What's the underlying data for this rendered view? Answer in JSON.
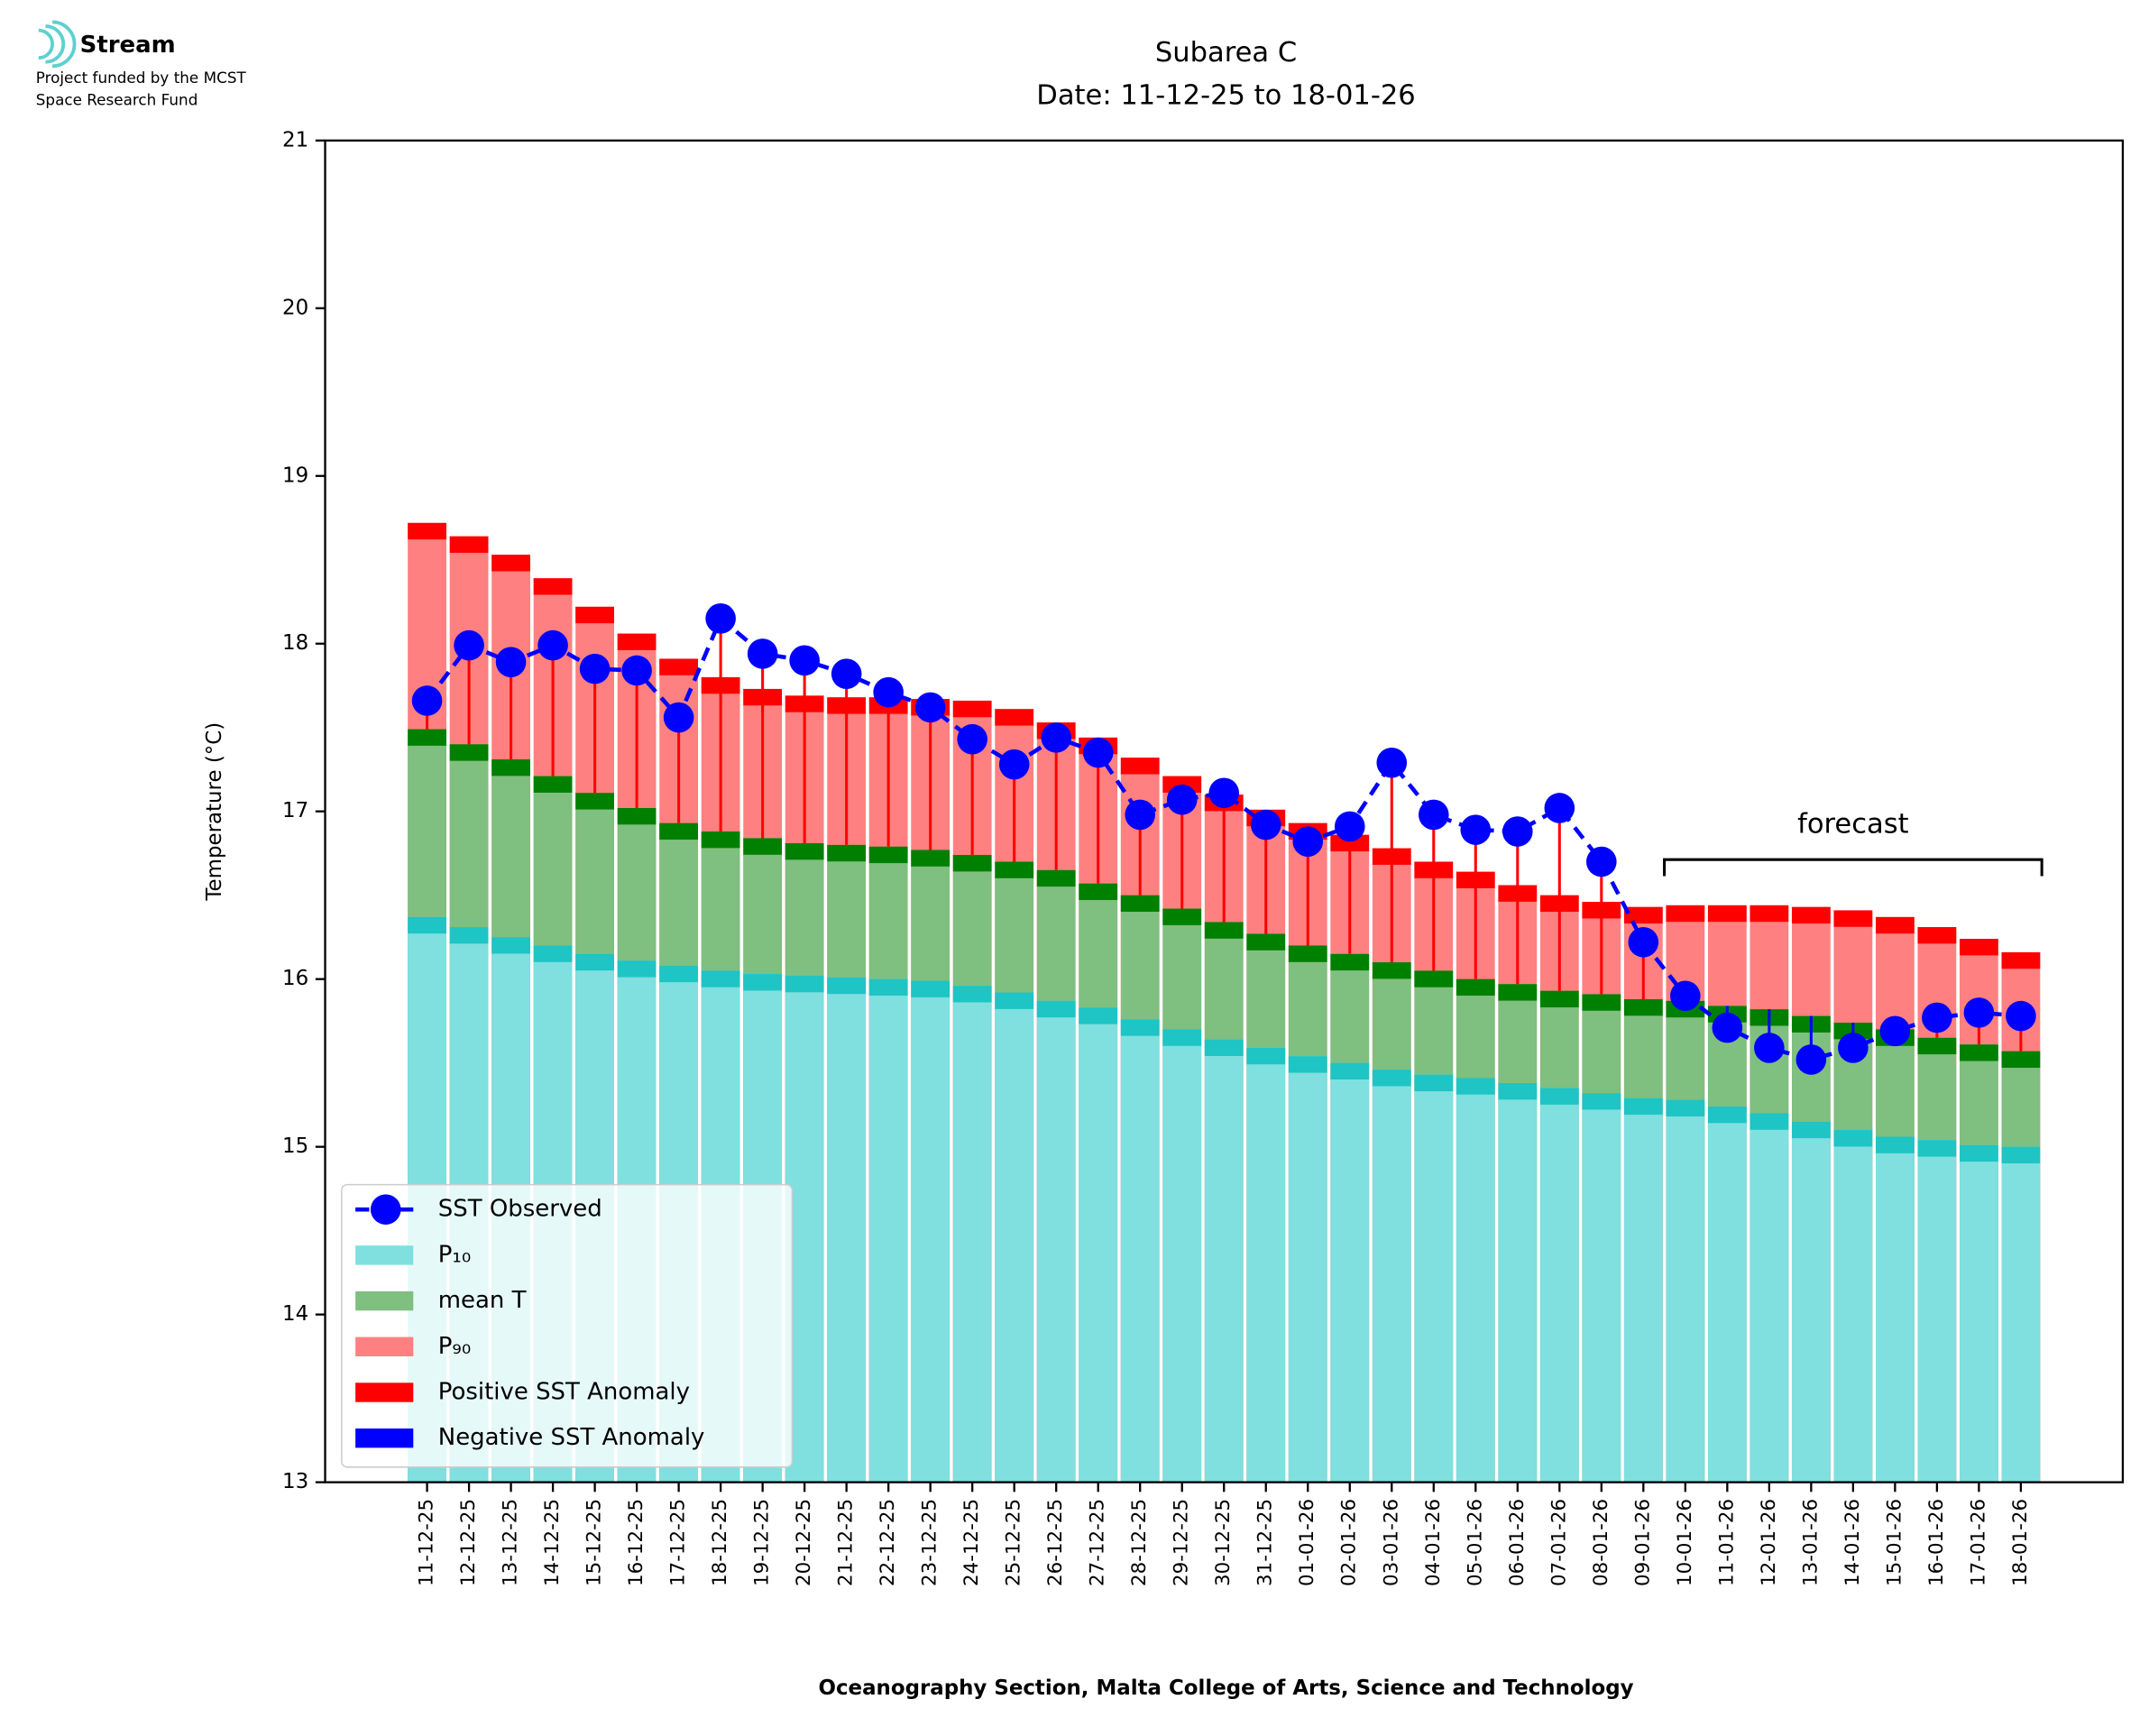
{
  "logo": {
    "name": "Stream",
    "lines": [
      "Project funded by the MCST",
      "Space Research Fund"
    ]
  },
  "chart_data": {
    "type": "bar",
    "title": "Subarea C",
    "subtitle": "Date: 11-12-25 to 18-01-26",
    "x_label": "Oceanography Section, Malta College of Arts, Science and Technology",
    "y_label": "Temperature (°C)",
    "annotation": "forecast",
    "forecast_start": "10-01-26",
    "categories": [
      "11-12-25",
      "12-12-25",
      "13-12-25",
      "14-12-25",
      "15-12-25",
      "16-12-25",
      "17-12-25",
      "18-12-25",
      "19-12-25",
      "20-12-25",
      "21-12-25",
      "22-12-25",
      "23-12-25",
      "24-12-25",
      "25-12-25",
      "26-12-25",
      "27-12-25",
      "28-12-25",
      "29-12-25",
      "30-12-25",
      "31-12-25",
      "01-01-26",
      "02-01-26",
      "03-01-26",
      "04-01-26",
      "05-01-26",
      "06-01-26",
      "07-01-26",
      "08-01-26",
      "09-01-26",
      "10-01-26",
      "11-01-26",
      "12-01-26",
      "13-01-26",
      "14-01-26",
      "15-01-26",
      "16-01-26",
      "17-01-26",
      "18-01-26"
    ],
    "series": [
      {
        "name": "SST Observed",
        "color": "#0000ff",
        "values": [
          17.66,
          17.99,
          17.89,
          17.99,
          17.85,
          17.84,
          17.56,
          18.15,
          17.94,
          17.9,
          17.82,
          17.71,
          17.62,
          17.43,
          17.28,
          17.44,
          17.35,
          16.98,
          17.07,
          17.11,
          16.92,
          16.82,
          16.91,
          17.29,
          16.98,
          16.89,
          16.88,
          17.02,
          16.7,
          16.22,
          15.9,
          15.71,
          15.59,
          15.52,
          15.59,
          15.69,
          15.77,
          15.8,
          15.78
        ]
      },
      {
        "name": "P₁₀",
        "color": "#80dfdf",
        "band_color": "#1fc4c4",
        "values": [
          16.37,
          16.31,
          16.25,
          16.2,
          16.15,
          16.11,
          16.08,
          16.05,
          16.03,
          16.02,
          16.01,
          16.0,
          15.99,
          15.96,
          15.92,
          15.87,
          15.83,
          15.76,
          15.7,
          15.64,
          15.59,
          15.54,
          15.5,
          15.46,
          15.43,
          15.41,
          15.38,
          15.35,
          15.32,
          15.29,
          15.28,
          15.24,
          15.2,
          15.15,
          15.1,
          15.06,
          15.04,
          15.01,
          15.0
        ]
      },
      {
        "name": "mean T",
        "color": "#7fbf7f",
        "band_color": "#008000",
        "values": [
          17.49,
          17.4,
          17.31,
          17.21,
          17.11,
          17.02,
          16.93,
          16.88,
          16.84,
          16.81,
          16.8,
          16.79,
          16.77,
          16.74,
          16.7,
          16.65,
          16.57,
          16.5,
          16.42,
          16.34,
          16.27,
          16.2,
          16.15,
          16.1,
          16.05,
          16.0,
          15.97,
          15.93,
          15.91,
          15.88,
          15.87,
          15.84,
          15.82,
          15.78,
          15.74,
          15.7,
          15.65,
          15.61,
          15.57
        ]
      },
      {
        "name": "P₉₀",
        "color": "#ff8080",
        "band_color": "#ff0000",
        "values": [
          18.72,
          18.64,
          18.53,
          18.39,
          18.22,
          18.06,
          17.91,
          17.8,
          17.73,
          17.69,
          17.68,
          17.68,
          17.67,
          17.66,
          17.61,
          17.53,
          17.44,
          17.32,
          17.21,
          17.1,
          17.01,
          16.93,
          16.86,
          16.78,
          16.7,
          16.64,
          16.56,
          16.5,
          16.46,
          16.43,
          16.44,
          16.44,
          16.44,
          16.43,
          16.41,
          16.37,
          16.31,
          16.24,
          16.16
        ]
      }
    ],
    "anomaly_legend": [
      {
        "name": "Positive SST Anomaly",
        "color": "#ff0000"
      },
      {
        "name": "Negative SST Anomaly",
        "color": "#0000ff"
      }
    ],
    "ylim": [
      13,
      21
    ],
    "yticks": [
      13,
      14,
      15,
      16,
      17,
      18,
      19,
      20,
      21
    ]
  }
}
